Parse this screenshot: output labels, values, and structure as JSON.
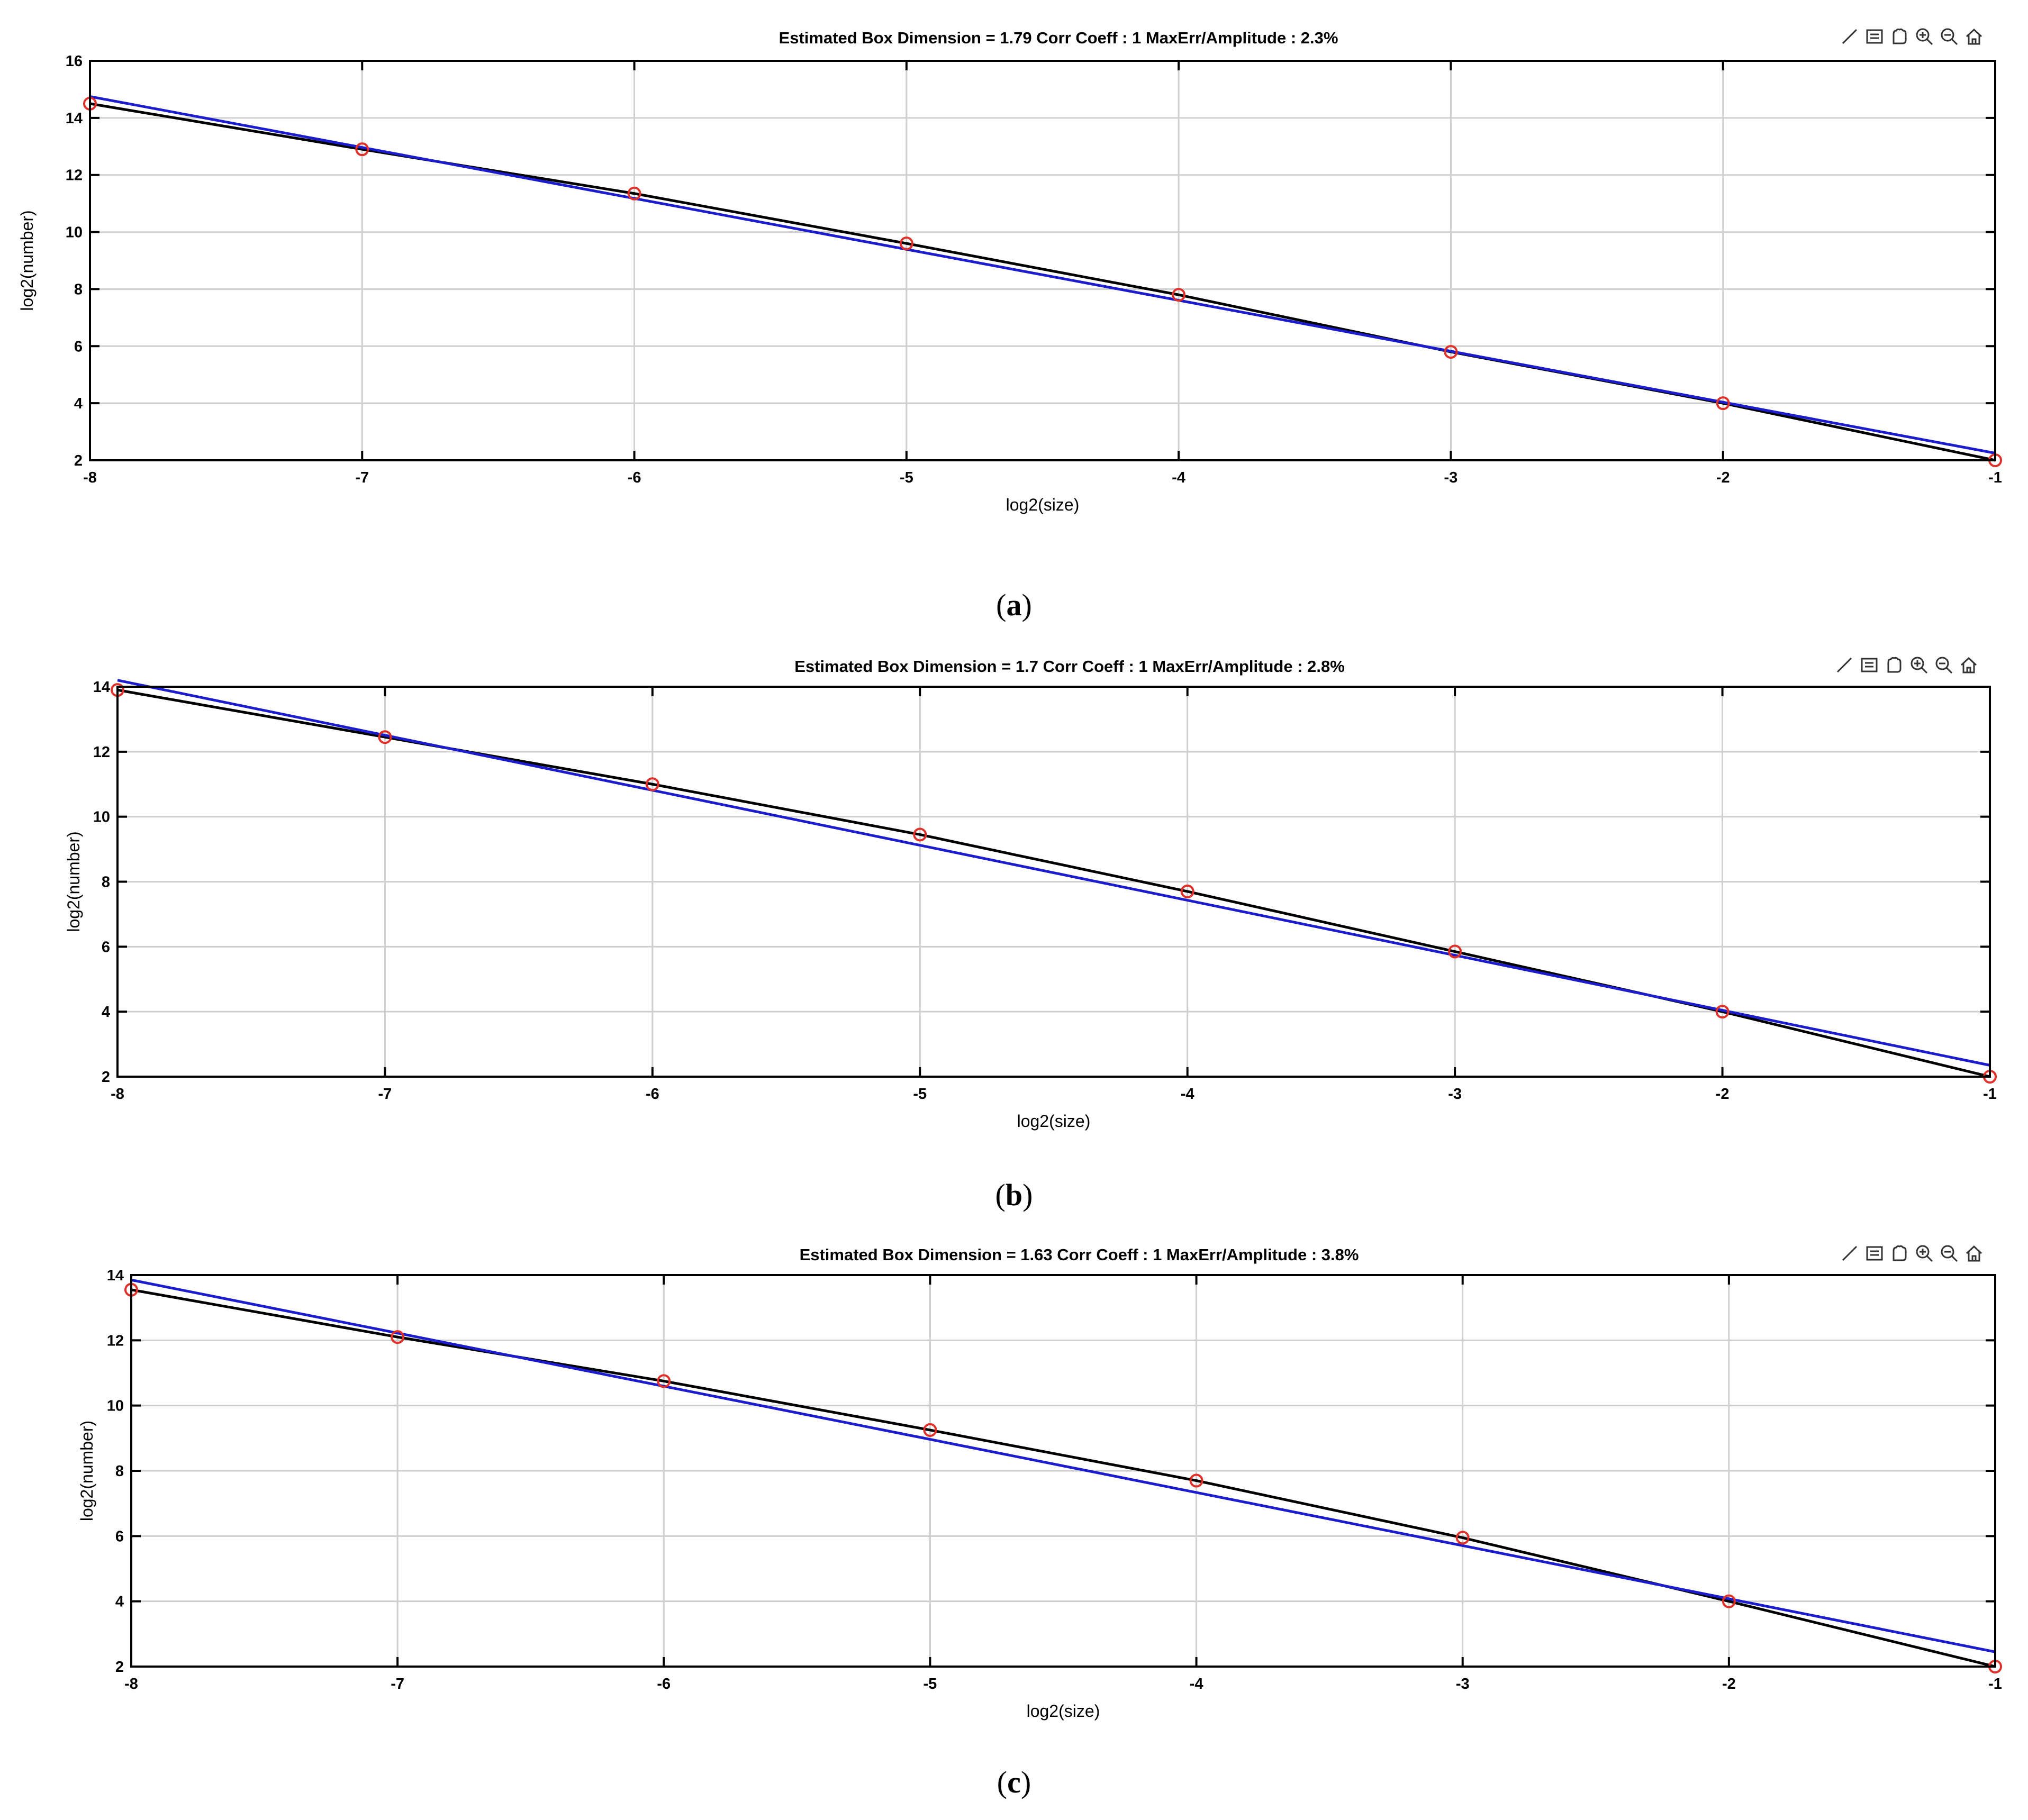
{
  "chart_data": [
    {
      "type": "line",
      "panel_label": "a",
      "title": "Estimated Box Dimension =  1.79    Corr Coeff : 1    MaxErr/Amplitude : 2.3%",
      "xlabel": "log2(size)",
      "ylabel": "log2(number)",
      "xlim": [
        -8,
        -1
      ],
      "ylim": [
        2,
        16
      ],
      "x_ticks": [
        -8,
        -7,
        -6,
        -5,
        -4,
        -3,
        -2,
        -1
      ],
      "y_ticks": [
        2,
        4,
        6,
        8,
        10,
        12,
        14,
        16
      ],
      "grid": true,
      "series": [
        {
          "kind": "markers",
          "color": "#e0302a",
          "x": [
            -8,
            -7,
            -6,
            -5,
            -4,
            -3,
            -2,
            -1
          ],
          "y": [
            14.5,
            12.9,
            11.35,
            9.6,
            7.8,
            5.8,
            4.0,
            2.0
          ]
        },
        {
          "kind": "line",
          "color": "#000000",
          "x": [
            -8,
            -7,
            -6,
            -5,
            -4,
            -3,
            -2,
            -1
          ],
          "y": [
            14.5,
            12.9,
            11.35,
            9.6,
            7.8,
            5.8,
            4.0,
            2.0
          ]
        },
        {
          "kind": "line",
          "color": "#1c1ccf",
          "x": [
            -8,
            -1
          ],
          "y": [
            14.75,
            2.25
          ]
        }
      ]
    },
    {
      "type": "line",
      "panel_label": "b",
      "title": "Estimated Box Dimension =  1.7    Corr Coeff : 1    MaxErr/Amplitude : 2.8%",
      "xlabel": "log2(size)",
      "ylabel": "log2(number)",
      "xlim": [
        -8,
        -1
      ],
      "ylim": [
        2,
        14
      ],
      "x_ticks": [
        -8,
        -7,
        -6,
        -5,
        -4,
        -3,
        -2,
        -1
      ],
      "y_ticks": [
        2,
        4,
        6,
        8,
        10,
        12,
        14
      ],
      "grid": true,
      "series": [
        {
          "kind": "markers",
          "color": "#e0302a",
          "x": [
            -8,
            -7,
            -6,
            -5,
            -4,
            -3,
            -2,
            -1
          ],
          "y": [
            13.9,
            12.45,
            11.0,
            9.45,
            7.7,
            5.85,
            4.0,
            2.0
          ]
        },
        {
          "kind": "line",
          "color": "#000000",
          "x": [
            -8,
            -7,
            -6,
            -5,
            -4,
            -3,
            -2,
            -1
          ],
          "y": [
            13.9,
            12.45,
            11.0,
            9.45,
            7.7,
            5.85,
            4.0,
            2.0
          ]
        },
        {
          "kind": "line",
          "color": "#1c1ccf",
          "x": [
            -8,
            -1
          ],
          "y": [
            14.2,
            2.35
          ]
        }
      ]
    },
    {
      "type": "line",
      "panel_label": "c",
      "title": "Estimated Box Dimension =  1.63    Corr Coeff : 1    MaxErr/Amplitude : 3.8%",
      "xlabel": "log2(size)",
      "ylabel": "log2(number)",
      "xlim": [
        -8,
        -1
      ],
      "ylim": [
        2,
        14
      ],
      "x_ticks": [
        -8,
        -7,
        -6,
        -5,
        -4,
        -3,
        -2,
        -1
      ],
      "y_ticks": [
        2,
        4,
        6,
        8,
        10,
        12,
        14
      ],
      "grid": true,
      "series": [
        {
          "kind": "markers",
          "color": "#e0302a",
          "x": [
            -8,
            -7,
            -6,
            -5,
            -4,
            -3,
            -2,
            -1
          ],
          "y": [
            13.55,
            12.1,
            10.75,
            9.25,
            7.7,
            5.95,
            4.0,
            2.0
          ]
        },
        {
          "kind": "line",
          "color": "#000000",
          "x": [
            -8,
            -7,
            -6,
            -5,
            -4,
            -3,
            -2,
            -1
          ],
          "y": [
            13.55,
            12.1,
            10.75,
            9.25,
            7.7,
            5.95,
            4.0,
            2.0
          ]
        },
        {
          "kind": "line",
          "color": "#1c1ccf",
          "x": [
            -8,
            -1
          ],
          "y": [
            13.85,
            2.45
          ]
        }
      ]
    }
  ],
  "toolbar_icons": [
    "brush-icon",
    "data-tip-icon",
    "pan-hand-icon",
    "zoom-in-icon",
    "zoom-out-icon",
    "home-icon"
  ]
}
